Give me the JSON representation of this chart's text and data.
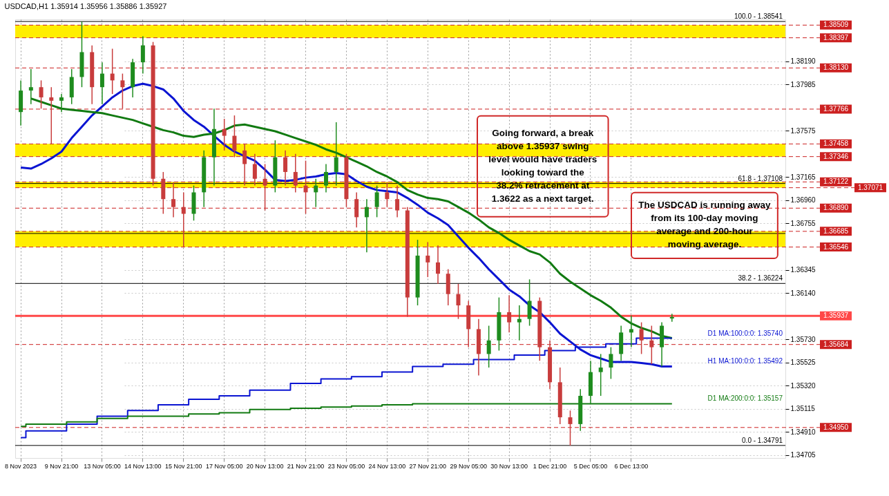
{
  "chart_data": {
    "type": "candlestick",
    "title": "USDCAD,H1 1.35914 1.35956 1.35886 1.35927",
    "categories": [
      "8 Nov 2023",
      null,
      null,
      null,
      "9 Nov 21:00",
      null,
      null,
      null,
      "13 Nov 05:00",
      null,
      null,
      null,
      "14 Nov 13:00",
      null,
      null,
      null,
      "15 Nov 21:00",
      null,
      null,
      null,
      "17 Nov 05:00",
      null,
      null,
      null,
      "20 Nov 13:00",
      null,
      null,
      null,
      "21 Nov 21:00",
      null,
      null,
      null,
      "23 Nov 05:00",
      null,
      null,
      null,
      "24 Nov 13:00",
      null,
      null,
      null,
      "27 Nov 21:00",
      null,
      null,
      null,
      "29 Nov 05:00",
      null,
      null,
      null,
      "30 Nov 13:00",
      null,
      null,
      null,
      "1 Dec 21:00",
      null,
      null,
      null,
      "5 Dec 05:00",
      null,
      null,
      null,
      "6 Dec 13:00",
      null,
      null,
      null,
      null
    ],
    "ohlc": [
      [
        1.3774,
        1.3802,
        1.3762,
        1.3793
      ],
      [
        1.3793,
        1.3812,
        1.3781,
        1.3796
      ],
      [
        1.3796,
        1.3802,
        1.3777,
        1.3787
      ],
      [
        1.3787,
        1.3796,
        1.3746,
        1.3784
      ],
      [
        1.3784,
        1.379,
        1.3774,
        1.3787
      ],
      [
        1.3787,
        1.3812,
        1.3781,
        1.3805
      ],
      [
        1.3805,
        1.3854,
        1.3796,
        1.3827
      ],
      [
        1.3827,
        1.3833,
        1.3781,
        1.3796
      ],
      [
        1.3796,
        1.3818,
        1.3781,
        1.3808
      ],
      [
        1.3808,
        1.383,
        1.379,
        1.3802
      ],
      [
        1.3802,
        1.3808,
        1.3777,
        1.3796
      ],
      [
        1.3796,
        1.3821,
        1.3787,
        1.3818
      ],
      [
        1.3818,
        1.3841,
        1.3808,
        1.3833
      ],
      [
        1.3833,
        1.3836,
        1.3709,
        1.3715
      ],
      [
        1.3715,
        1.3721,
        1.3684,
        1.3697
      ],
      [
        1.3697,
        1.3712,
        1.3681,
        1.369
      ],
      [
        1.369,
        1.3703,
        1.3655,
        1.3684
      ],
      [
        1.3684,
        1.3709,
        1.3678,
        1.3703
      ],
      [
        1.3703,
        1.374,
        1.369,
        1.3734
      ],
      [
        1.3734,
        1.3777,
        1.3709,
        1.3759
      ],
      [
        1.3759,
        1.3768,
        1.374,
        1.3753
      ],
      [
        1.3753,
        1.3771,
        1.3734,
        1.374
      ],
      [
        1.374,
        1.3746,
        1.3709,
        1.3728
      ],
      [
        1.3728,
        1.3737,
        1.3709,
        1.3715
      ],
      [
        1.3715,
        1.3728,
        1.3687,
        1.3709
      ],
      [
        1.3709,
        1.3749,
        1.3703,
        1.3734
      ],
      [
        1.3734,
        1.374,
        1.3709,
        1.3721
      ],
      [
        1.3721,
        1.3737,
        1.3703,
        1.3709
      ],
      [
        1.3709,
        1.3731,
        1.3684,
        1.3703
      ],
      [
        1.3703,
        1.3715,
        1.369,
        1.3709
      ],
      [
        1.3709,
        1.3728,
        1.3703,
        1.3721
      ],
      [
        1.3721,
        1.3765,
        1.3709,
        1.3734
      ],
      [
        1.3734,
        1.3737,
        1.369,
        1.3697
      ],
      [
        1.3697,
        1.3703,
        1.3672,
        1.3681
      ],
      [
        1.3681,
        1.3697,
        1.365,
        1.369
      ],
      [
        1.369,
        1.3709,
        1.3681,
        1.3703
      ],
      [
        1.3703,
        1.3712,
        1.369,
        1.3697
      ],
      [
        1.3697,
        1.3709,
        1.3681,
        1.3687
      ],
      [
        1.3687,
        1.369,
        1.3593,
        1.361
      ],
      [
        1.361,
        1.3661,
        1.3603,
        1.3647
      ],
      [
        1.3647,
        1.3659,
        1.3628,
        1.3641
      ],
      [
        1.3641,
        1.3656,
        1.3622,
        1.3631
      ],
      [
        1.3631,
        1.3635,
        1.3603,
        1.3613
      ],
      [
        1.3613,
        1.3622,
        1.3591,
        1.3603
      ],
      [
        1.3603,
        1.3607,
        1.3566,
        1.3582
      ],
      [
        1.3582,
        1.3591,
        1.3541,
        1.356
      ],
      [
        1.356,
        1.3585,
        1.3548,
        1.3572
      ],
      [
        1.3572,
        1.361,
        1.3563,
        1.3597
      ],
      [
        1.3597,
        1.3612,
        1.3579,
        1.3588
      ],
      [
        1.3588,
        1.3603,
        1.3572,
        1.3591
      ],
      [
        1.3591,
        1.3626,
        1.3585,
        1.3607
      ],
      [
        1.3607,
        1.361,
        1.3554,
        1.3566
      ],
      [
        1.3566,
        1.3572,
        1.3529,
        1.3535
      ],
      [
        1.3535,
        1.3548,
        1.3498,
        1.3504
      ],
      [
        1.3504,
        1.351,
        1.3479,
        1.3498
      ],
      [
        1.3498,
        1.3529,
        1.3492,
        1.3523
      ],
      [
        1.3523,
        1.3554,
        1.3516,
        1.3544
      ],
      [
        1.3544,
        1.356,
        1.3523,
        1.3548
      ],
      [
        1.3548,
        1.3566,
        1.3538,
        1.356
      ],
      [
        1.356,
        1.3585,
        1.3554,
        1.3579
      ],
      [
        1.3579,
        1.3594,
        1.3566,
        1.3582
      ],
      [
        1.3582,
        1.3588,
        1.356,
        1.3572
      ],
      [
        1.3572,
        1.3585,
        1.3551,
        1.3566
      ],
      [
        1.3566,
        1.3588,
        1.3549,
        1.3585
      ],
      [
        1.35914,
        1.35956,
        1.35886,
        1.35927
      ]
    ],
    "colors": [
      "#1e8c1e",
      "#1e8c1e",
      "#c83c3c",
      "#c83c3c",
      "#1e8c1e",
      "#1e8c1e",
      "#1e8c1e",
      "#c83c3c",
      "#1e8c1e",
      "#c83c3c",
      "#c83c3c",
      "#1e8c1e",
      "#1e8c1e",
      "#c83c3c",
      "#c83c3c",
      "#c83c3c",
      "#c83c3c",
      "#1e8c1e",
      "#1e8c1e",
      "#1e8c1e",
      "#c83c3c",
      "#c83c3c",
      "#c83c3c",
      "#c83c3c",
      "#c83c3c",
      "#1e8c1e",
      "#c83c3c",
      "#c83c3c",
      "#c83c3c",
      "#1e8c1e",
      "#1e8c1e",
      "#1e8c1e",
      "#c83c3c",
      "#c83c3c",
      "#1e8c1e",
      "#1e8c1e",
      "#c83c3c",
      "#c83c3c",
      "#c83c3c",
      "#1e8c1e",
      "#c83c3c",
      "#c83c3c",
      "#c83c3c",
      "#c83c3c",
      "#c83c3c",
      "#c83c3c",
      "#1e8c1e",
      "#1e8c1e",
      "#c83c3c",
      "#1e8c1e",
      "#1e8c1e",
      "#c83c3c",
      "#c83c3c",
      "#c83c3c",
      "#c83c3c",
      "#1e8c1e",
      "#1e8c1e",
      "#1e8c1e",
      "#1e8c1e",
      "#1e8c1e",
      "#1e8c1e",
      "#c83c3c",
      "#c83c3c",
      "#1e8c1e",
      "#1e8c1e"
    ],
    "series": [
      {
        "type": "line",
        "name": "H1 MA:100:0:0: 1.35492",
        "color": "#0a14d2",
        "values": [
          1.3725,
          1.3724,
          1.3728,
          1.3733,
          1.3739,
          1.3751,
          1.3761,
          1.3771,
          1.3779,
          1.3787,
          1.3793,
          1.3797,
          1.3799,
          1.3797,
          1.3794,
          1.3786,
          1.3775,
          1.3767,
          1.3761,
          1.3753,
          1.3745,
          1.3739,
          1.3735,
          1.3731,
          1.3723,
          1.3714,
          1.3713,
          1.3714,
          1.3716,
          1.3717,
          1.3719,
          1.372,
          1.3719,
          1.3713,
          1.3708,
          1.3705,
          1.3704,
          1.3703,
          1.3698,
          1.3692,
          1.3685,
          1.368,
          1.3674,
          1.3664,
          1.3654,
          1.3645,
          1.3635,
          1.3626,
          1.3617,
          1.3611,
          1.3603,
          1.3597,
          1.3588,
          1.3578,
          1.3571,
          1.3564,
          1.3559,
          1.3556,
          1.3553,
          1.3553,
          1.3553,
          1.3552,
          1.3551,
          1.3549,
          1.3549
        ]
      },
      {
        "type": "line",
        "color": "#117a11",
        "values": [
          null,
          1.3786,
          1.3783,
          1.378,
          1.3777,
          1.3776,
          1.3775,
          1.3774,
          1.3773,
          1.3771,
          1.3769,
          1.3767,
          1.3764,
          1.3761,
          1.3758,
          1.3756,
          1.3753,
          1.3752,
          1.3754,
          1.3755,
          1.3758,
          1.3762,
          1.3763,
          1.3761,
          1.3759,
          1.3757,
          1.3754,
          1.3751,
          1.3748,
          1.3745,
          1.3741,
          1.3738,
          1.3734,
          1.373,
          1.3726,
          1.3721,
          1.3717,
          1.3712,
          1.3705,
          1.3701,
          1.3698,
          1.3697,
          1.3695,
          1.369,
          1.3685,
          1.3679,
          1.3672,
          1.3667,
          1.3661,
          1.3656,
          1.3651,
          1.3648,
          1.3641,
          1.3631,
          1.3624,
          1.3618,
          1.3612,
          1.3607,
          1.3601,
          1.3593,
          1.3587,
          1.3583,
          1.358,
          1.3576,
          1.3574
        ]
      },
      {
        "type": "step",
        "name": "D1 MA:100:0:0: 1.35740",
        "color": "#0a14d2",
        "values": [
          1.3486,
          1.3492,
          1.3492,
          1.3492,
          1.3492,
          1.3498,
          1.3498,
          1.3498,
          1.3505,
          1.3505,
          1.3505,
          1.351,
          1.351,
          1.351,
          1.3515,
          1.3515,
          1.3515,
          1.352,
          1.352,
          1.352,
          1.3523,
          1.3523,
          1.3523,
          1.3528,
          1.3528,
          1.3528,
          1.3528,
          1.3534,
          1.3534,
          1.3534,
          1.3538,
          1.3538,
          1.3538,
          1.354,
          1.354,
          1.354,
          1.3544,
          1.3544,
          1.3544,
          1.3549,
          1.3549,
          1.3549,
          1.3551,
          1.3551,
          1.3551,
          1.3555,
          1.3555,
          1.3555,
          1.3555,
          1.3559,
          1.3559,
          1.3559,
          1.3563,
          1.3563,
          1.3563,
          1.3566,
          1.3566,
          1.3566,
          1.3569,
          1.3569,
          1.3569,
          1.3574,
          1.3574,
          1.3574,
          1.3574
        ]
      },
      {
        "type": "step",
        "name": "D1 MA:200:0:0: 1.35157",
        "color": "#117a11",
        "values": [
          1.3496,
          1.3498,
          1.3498,
          1.3498,
          1.3498,
          1.35,
          1.35,
          1.35,
          1.3503,
          1.3503,
          1.3503,
          1.3505,
          1.3505,
          1.3505,
          1.3505,
          1.3505,
          1.3505,
          1.3507,
          1.3507,
          1.3507,
          1.3508,
          1.3508,
          1.3508,
          1.3511,
          1.3511,
          1.3511,
          1.3511,
          1.3512,
          1.3512,
          1.3512,
          1.3513,
          1.3513,
          1.3513,
          1.3514,
          1.3514,
          1.3514,
          1.3515,
          1.3515,
          1.3515,
          1.3516,
          1.3516,
          1.3516,
          1.3516,
          1.3516,
          1.3516,
          1.3516,
          1.3516,
          1.3516,
          1.3516,
          1.3516,
          1.3516,
          1.3516,
          1.3516,
          1.3516,
          1.3516,
          1.3516,
          1.3516,
          1.3516,
          1.3516,
          1.3516,
          1.3516,
          1.3516,
          1.3516,
          1.3516,
          1.3516
        ]
      }
    ],
    "ylim": [
      1.3468,
      1.3856
    ],
    "yticks": [
      {
        "value": 1.34705,
        "label": "1.34705"
      },
      {
        "value": 1.3491,
        "label": "1.34910"
      },
      {
        "value": 1.35115,
        "label": "1.35115"
      },
      {
        "value": 1.3532,
        "label": "1.35320"
      },
      {
        "value": 1.35525,
        "label": "1.35525"
      },
      {
        "value": 1.3573,
        "label": "1.35730"
      },
      {
        "value": 1.3614,
        "label": "1.36140"
      },
      {
        "value": 1.36345,
        "label": "1.36345"
      },
      {
        "value": 1.36755,
        "label": "1.36755"
      },
      {
        "value": 1.3696,
        "label": "1.36960"
      },
      {
        "value": 1.37165,
        "label": "1.37165"
      },
      {
        "value": 1.37575,
        "label": "1.37575"
      },
      {
        "value": 1.37985,
        "label": "1.37985"
      },
      {
        "value": 1.3819,
        "label": "1.38190"
      }
    ],
    "grid": true,
    "bands": [
      {
        "axis": "y",
        "from": 1.38397,
        "to": 1.38509,
        "label": null,
        "color": "#ffee00"
      },
      {
        "axis": "y",
        "from": 1.37346,
        "to": 1.37458,
        "label": null,
        "color": "#ffee00"
      },
      {
        "axis": "y",
        "from": 1.37071,
        "to": 1.37122,
        "label": null,
        "color": "#ffee00"
      },
      {
        "axis": "y",
        "from": 1.36546,
        "to": 1.36685,
        "label": null,
        "color": "#ffee00"
      }
    ],
    "ref_lines": [
      {
        "axis": "y",
        "value": 1.38541,
        "label": null,
        "color": "#000000",
        "line_style": "solid"
      },
      {
        "axis": "y",
        "value": 1.37108,
        "label": null,
        "color": "#000000",
        "line_style": "solid"
      },
      {
        "axis": "y",
        "value": 1.36666,
        "label": null,
        "color": "#000000",
        "line_style": "solid"
      },
      {
        "axis": "y",
        "value": 1.36224,
        "label": null,
        "color": "#000000",
        "line_style": "solid"
      },
      {
        "axis": "y",
        "value": 1.34791,
        "label": null,
        "color": "#000000",
        "line_style": "solid"
      },
      {
        "axis": "y",
        "value": 1.38509,
        "label": "1.38509",
        "color": "#cc2020",
        "line_style": "dashed"
      },
      {
        "axis": "y",
        "value": 1.38397,
        "label": "1.38397",
        "color": "#cc2020",
        "line_style": "dashed"
      },
      {
        "axis": "y",
        "value": 1.3813,
        "label": "1.38130",
        "color": "#cc2020",
        "line_style": "dashed"
      },
      {
        "axis": "y",
        "value": 1.37766,
        "label": "1.37766",
        "color": "#cc2020",
        "line_style": "dashed"
      },
      {
        "axis": "y",
        "value": 1.37458,
        "label": "1.37458",
        "color": "#cc2020",
        "line_style": "dashed"
      },
      {
        "axis": "y",
        "value": 1.37346,
        "label": "1.37346",
        "color": "#cc2020",
        "line_style": "dashed"
      },
      {
        "axis": "y",
        "value": 1.37122,
        "label": "1.37122",
        "color": "#cc2020",
        "line_style": "dashed"
      },
      {
        "axis": "y",
        "value": 1.37071,
        "label": "1.37071",
        "color": "#cc2020",
        "line_style": "dashed"
      },
      {
        "axis": "y",
        "value": 1.3689,
        "label": "1.36890",
        "color": "#cc2020",
        "line_style": "dashed"
      },
      {
        "axis": "y",
        "value": 1.36685,
        "label": "1.36685",
        "color": "#cc2020",
        "line_style": "dashed"
      },
      {
        "axis": "y",
        "value": 1.36546,
        "label": "1.36546",
        "color": "#cc2020",
        "line_style": "dashed"
      },
      {
        "axis": "y",
        "value": 1.35937,
        "label": "1.35937",
        "color": "#ff4848",
        "line_style": "solid"
      },
      {
        "axis": "y",
        "value": 1.35684,
        "label": "1.35684",
        "color": "#cc2020",
        "line_style": "dashed"
      },
      {
        "axis": "y",
        "value": 1.3495,
        "label": "1.34950",
        "color": "#cc2020",
        "line_style": "dashed"
      }
    ],
    "annotations": [
      "Going forward, a break\nabove 1.35937 swing\nlevel would have traders\nlooking toward the\n38.2% retracement at\n1.3622 as a next target.",
      "The USDCAD is running away\nfrom its 100-day moving\naverage and 200-hour\nmoving average.",
      {
        "text": "100.0 - 1.38541",
        "y": 1.38541
      },
      {
        "text": "61.8 - 1.37108",
        "y": 1.37108
      },
      {
        "text": "38.2 - 1.36224",
        "y": 1.36224
      },
      {
        "text": "0.0 - 1.34791",
        "y": 1.34791
      }
    ]
  }
}
